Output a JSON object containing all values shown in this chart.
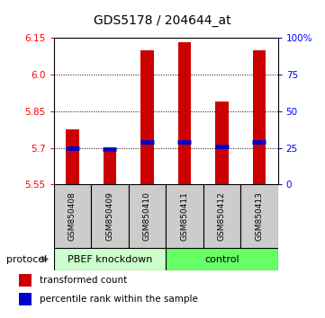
{
  "title": "GDS5178 / 204644_at",
  "samples": [
    "GSM850408",
    "GSM850409",
    "GSM850410",
    "GSM850411",
    "GSM850412",
    "GSM850413"
  ],
  "bar_tops": [
    5.775,
    5.695,
    6.1,
    6.135,
    5.89,
    6.1
  ],
  "bar_bottom": 5.55,
  "blue_markers": [
    5.7,
    5.695,
    5.725,
    5.725,
    5.705,
    5.725
  ],
  "ylim": [
    5.55,
    6.15
  ],
  "yticks_left": [
    5.55,
    5.7,
    5.85,
    6.0,
    6.15
  ],
  "yticks_right": [
    0,
    25,
    50,
    75,
    100
  ],
  "yticks_right_labels": [
    "0",
    "25",
    "50",
    "75",
    "100%"
  ],
  "gridlines": [
    5.7,
    5.85,
    6.0,
    6.15
  ],
  "bar_color": "#cc0000",
  "blue_color": "#0000cc",
  "group1_label": "PBEF knockdown",
  "group2_label": "control",
  "group_bg1": "#ccffcc",
  "group_bg2": "#66ff66",
  "sample_bg": "#cccccc",
  "protocol_label": "protocol",
  "legend_red": "transformed count",
  "legend_blue": "percentile rank within the sample"
}
